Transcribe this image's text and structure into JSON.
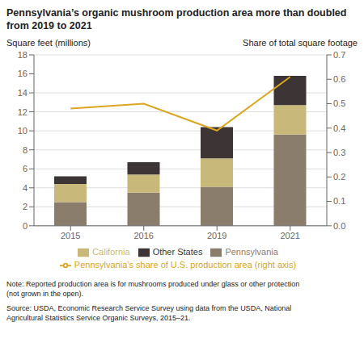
{
  "chart_data": {
    "type": "bar",
    "title": "Pennsylvania’s organic mushroom production area more than doubled\nfrom 2019 to 2021",
    "ylabel": "Square feet (millions)",
    "y2label": "Share of total square footage",
    "categories": [
      "2015",
      "2016",
      "2019",
      "2021"
    ],
    "series": [
      {
        "name": "Pennsylvania",
        "color": "#8B7D6B",
        "values": [
          2.5,
          3.5,
          4.1,
          9.6
        ]
      },
      {
        "name": "California",
        "color": "#C8B87A",
        "values": [
          1.9,
          1.9,
          3.0,
          3.1
        ]
      },
      {
        "name": "Other States",
        "color": "#3D3535",
        "values": [
          0.8,
          1.3,
          3.3,
          3.1
        ]
      },
      {
        "name": "Pennsylvania’s share of U.S. production area (right axis)",
        "type": "line",
        "axis": "y2",
        "color": "#DAA520",
        "values": [
          0.48,
          0.5,
          0.39,
          0.61
        ]
      }
    ],
    "stacked": true,
    "grid": true,
    "legend": "bottom",
    "ylim": [
      0,
      18
    ],
    "yticks": [
      0,
      2,
      4,
      6,
      8,
      10,
      12,
      14,
      16,
      18
    ],
    "y2lim": [
      0,
      0.7
    ],
    "y2ticks": [
      {
        "value": 0,
        "label": "0.0"
      },
      0.1,
      0.2,
      0.3,
      0.4,
      0.5,
      0.6,
      0.7
    ],
    "annotations": [
      "Note: Reported production area is for mushrooms produced under glass or other protection\n(not grown in the open).",
      "Source: USDA, Economic Research Service Survey using data from the USDA, National\nAgricultural Statistics Service Organic Surveys, 2015–21."
    ]
  }
}
